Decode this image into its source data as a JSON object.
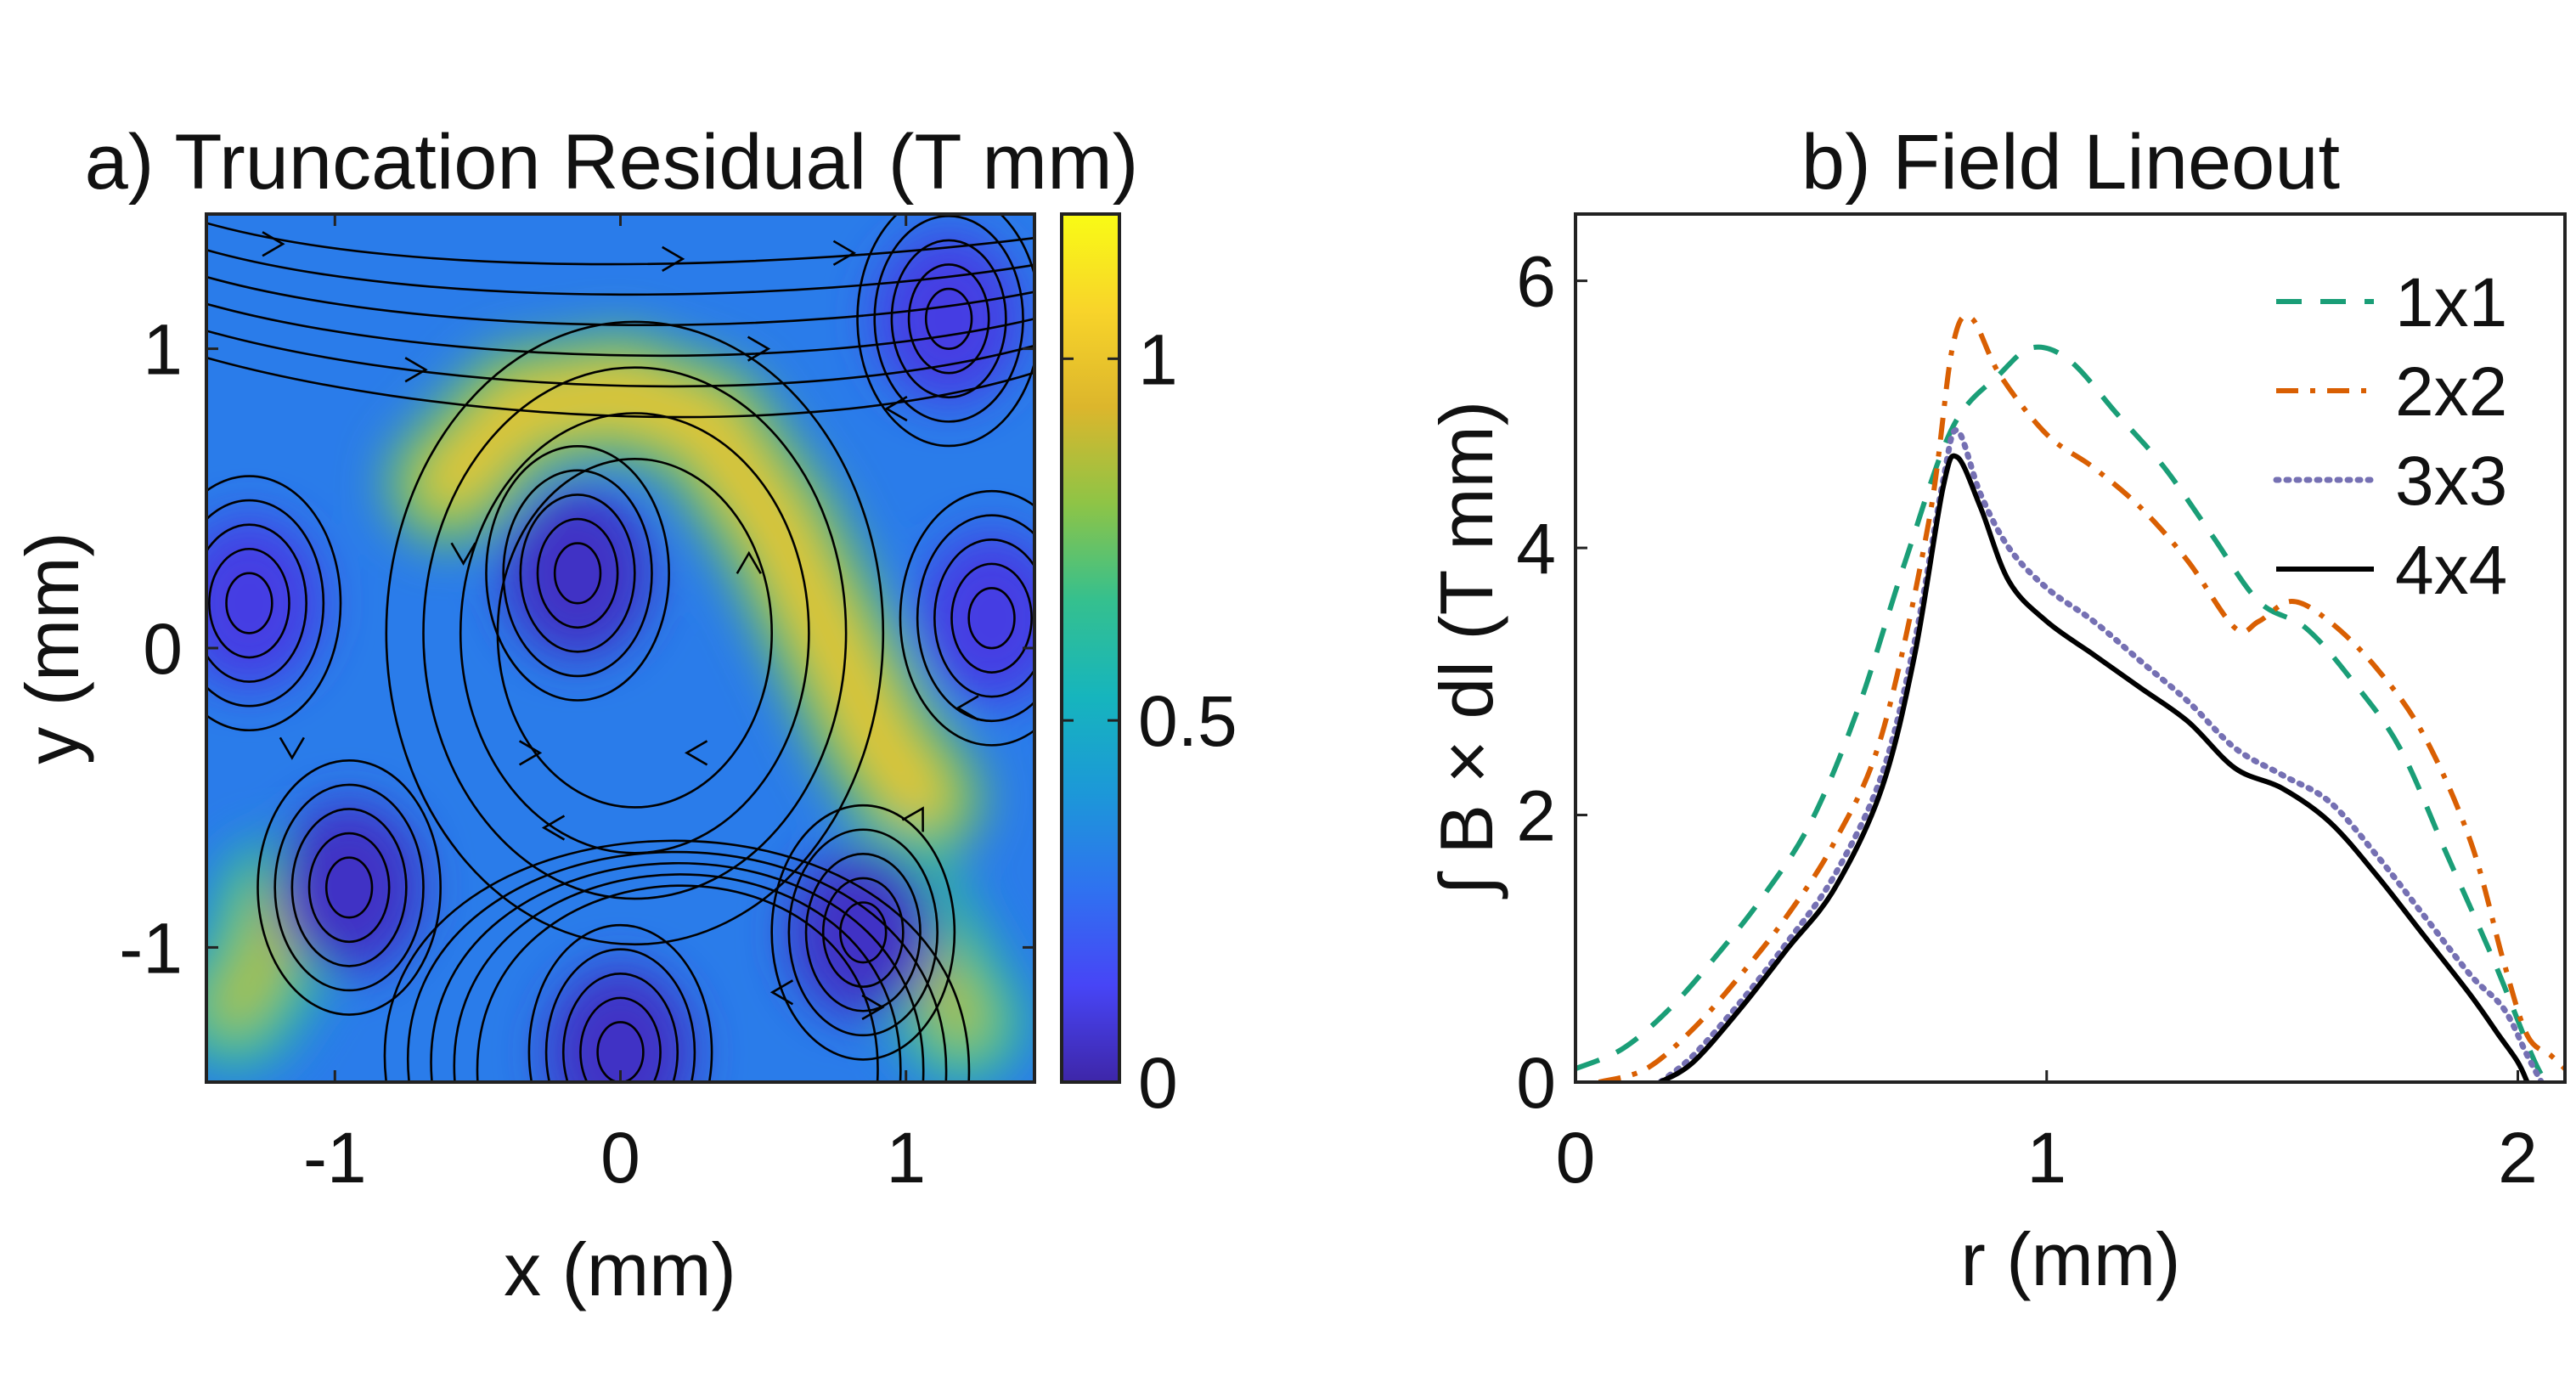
{
  "chart_data": [
    {
      "type": "heatmap",
      "panel": "a",
      "title": "a) Truncation Residual (T mm)",
      "xlabel": "x (mm)",
      "ylabel": "y (mm)",
      "xlim": [
        -1.45,
        1.45
      ],
      "ylim": [
        -1.45,
        1.45
      ],
      "xticks": [
        -1,
        0,
        1
      ],
      "xtick_labels": [
        "-1",
        "0",
        "1"
      ],
      "yticks": [
        -1,
        0,
        1
      ],
      "ytick_labels": [
        "-1",
        "0",
        "1"
      ],
      "colorbar": {
        "range": [
          0,
          1.2
        ],
        "ticks": [
          0,
          0.5,
          1
        ],
        "tick_labels": [
          "0",
          "0.5",
          "1"
        ],
        "colormap": "parula",
        "colormap_stops": [
          "#3e26a8",
          "#4745f6",
          "#2f72f0",
          "#1c98d8",
          "#16b5bd",
          "#35c08e",
          "#8ec446",
          "#dcb62c",
          "#f8d42a",
          "#f9fb15"
        ]
      },
      "features": {
        "background_level": 0.3,
        "high_ridges": [
          {
            "points": [
              [
                -0.6,
                0.55
              ],
              [
                -0.35,
                0.8
              ],
              [
                0.0,
                0.85
              ],
              [
                0.3,
                0.75
              ],
              [
                0.55,
                0.4
              ],
              [
                0.75,
                0.0
              ],
              [
                0.9,
                -0.3
              ],
              [
                1.05,
                -0.5
              ]
            ],
            "level": 1.0
          },
          {
            "points": [
              [
                -1.35,
                -1.2
              ],
              [
                -1.25,
                -1.05
              ],
              [
                -1.2,
                -0.85
              ]
            ],
            "level": 0.85
          },
          {
            "points": [
              [
                0.95,
                -0.8
              ],
              [
                1.05,
                -1.0
              ],
              [
                1.2,
                -1.25
              ]
            ],
            "level": 0.85
          }
        ],
        "vortex_centers": [
          {
            "x": -0.15,
            "y": 0.25,
            "level": 0.05
          },
          {
            "x": -0.95,
            "y": -0.8,
            "level": 0.05
          },
          {
            "x": 0.85,
            "y": -0.95,
            "level": 0.05
          },
          {
            "x": 1.3,
            "y": 0.1,
            "level": 0.1
          },
          {
            "x": -1.3,
            "y": 0.15,
            "level": 0.1
          },
          {
            "x": 0.0,
            "y": -1.35,
            "level": 0.05
          },
          {
            "x": 1.15,
            "y": 1.1,
            "level": 0.1
          }
        ]
      }
    },
    {
      "type": "line",
      "panel": "b",
      "title": "b) Field Lineout",
      "xlabel": "r (mm)",
      "ylabel": "∫ B × dl (T mm)",
      "xlim": [
        0,
        2.1
      ],
      "ylim": [
        0,
        6.5
      ],
      "xticks": [
        0,
        1,
        2
      ],
      "xtick_labels": [
        "0",
        "1",
        "2"
      ],
      "yticks": [
        0,
        2,
        4,
        6
      ],
      "ytick_labels": [
        "0",
        "2",
        "4",
        "6"
      ],
      "legend_position": "top-right",
      "series": [
        {
          "name": "1x1",
          "color": "#1a9e77",
          "style": "dashed",
          "points": [
            [
              0,
              0.1
            ],
            [
              0.1,
              0.25
            ],
            [
              0.2,
              0.55
            ],
            [
              0.3,
              0.95
            ],
            [
              0.4,
              1.4
            ],
            [
              0.5,
              1.95
            ],
            [
              0.6,
              2.8
            ],
            [
              0.7,
              3.9
            ],
            [
              0.8,
              4.9
            ],
            [
              0.9,
              5.3
            ],
            [
              0.97,
              5.5
            ],
            [
              1.05,
              5.4
            ],
            [
              1.15,
              5.0
            ],
            [
              1.25,
              4.6
            ],
            [
              1.35,
              4.1
            ],
            [
              1.45,
              3.6
            ],
            [
              1.55,
              3.4
            ],
            [
              1.65,
              3.0
            ],
            [
              1.75,
              2.5
            ],
            [
              1.85,
              1.7
            ],
            [
              1.95,
              0.9
            ],
            [
              2.03,
              0.2
            ],
            [
              2.06,
              0.0
            ]
          ]
        },
        {
          "name": "2x2",
          "color": "#d95f02",
          "style": "dashdot",
          "points": [
            [
              0.05,
              0.0
            ],
            [
              0.15,
              0.1
            ],
            [
              0.25,
              0.4
            ],
            [
              0.35,
              0.8
            ],
            [
              0.45,
              1.25
            ],
            [
              0.55,
              1.8
            ],
            [
              0.65,
              2.6
            ],
            [
              0.75,
              4.2
            ],
            [
              0.8,
              5.5
            ],
            [
              0.84,
              5.72
            ],
            [
              0.9,
              5.3
            ],
            [
              1.0,
              4.85
            ],
            [
              1.1,
              4.6
            ],
            [
              1.2,
              4.3
            ],
            [
              1.3,
              3.9
            ],
            [
              1.4,
              3.4
            ],
            [
              1.45,
              3.45
            ],
            [
              1.52,
              3.6
            ],
            [
              1.6,
              3.45
            ],
            [
              1.7,
              3.1
            ],
            [
              1.8,
              2.6
            ],
            [
              1.9,
              1.8
            ],
            [
              1.97,
              0.9
            ],
            [
              2.02,
              0.35
            ],
            [
              2.07,
              0.2
            ],
            [
              2.1,
              0.1
            ]
          ]
        },
        {
          "name": "3x3",
          "color": "#7570b3",
          "style": "dotted",
          "points": [
            [
              0.18,
              0.0
            ],
            [
              0.25,
              0.2
            ],
            [
              0.35,
              0.6
            ],
            [
              0.45,
              1.05
            ],
            [
              0.55,
              1.55
            ],
            [
              0.65,
              2.3
            ],
            [
              0.72,
              3.3
            ],
            [
              0.78,
              4.5
            ],
            [
              0.81,
              4.88
            ],
            [
              0.86,
              4.4
            ],
            [
              0.92,
              4.0
            ],
            [
              1.0,
              3.7
            ],
            [
              1.1,
              3.45
            ],
            [
              1.2,
              3.15
            ],
            [
              1.3,
              2.85
            ],
            [
              1.4,
              2.5
            ],
            [
              1.5,
              2.3
            ],
            [
              1.6,
              2.1
            ],
            [
              1.7,
              1.7
            ],
            [
              1.8,
              1.25
            ],
            [
              1.9,
              0.8
            ],
            [
              1.97,
              0.55
            ],
            [
              2.02,
              0.2
            ],
            [
              2.05,
              0.0
            ]
          ]
        },
        {
          "name": "4x4",
          "color": "#000000",
          "style": "solid",
          "points": [
            [
              0.18,
              0.0
            ],
            [
              0.25,
              0.15
            ],
            [
              0.35,
              0.55
            ],
            [
              0.45,
              1.0
            ],
            [
              0.55,
              1.45
            ],
            [
              0.65,
              2.2
            ],
            [
              0.72,
              3.2
            ],
            [
              0.78,
              4.45
            ],
            [
              0.81,
              4.68
            ],
            [
              0.86,
              4.3
            ],
            [
              0.92,
              3.75
            ],
            [
              1.0,
              3.45
            ],
            [
              1.1,
              3.2
            ],
            [
              1.2,
              2.95
            ],
            [
              1.3,
              2.7
            ],
            [
              1.4,
              2.35
            ],
            [
              1.5,
              2.2
            ],
            [
              1.6,
              1.95
            ],
            [
              1.7,
              1.55
            ],
            [
              1.8,
              1.1
            ],
            [
              1.9,
              0.65
            ],
            [
              1.96,
              0.35
            ],
            [
              2.0,
              0.15
            ],
            [
              2.02,
              0.0
            ]
          ]
        }
      ]
    }
  ]
}
